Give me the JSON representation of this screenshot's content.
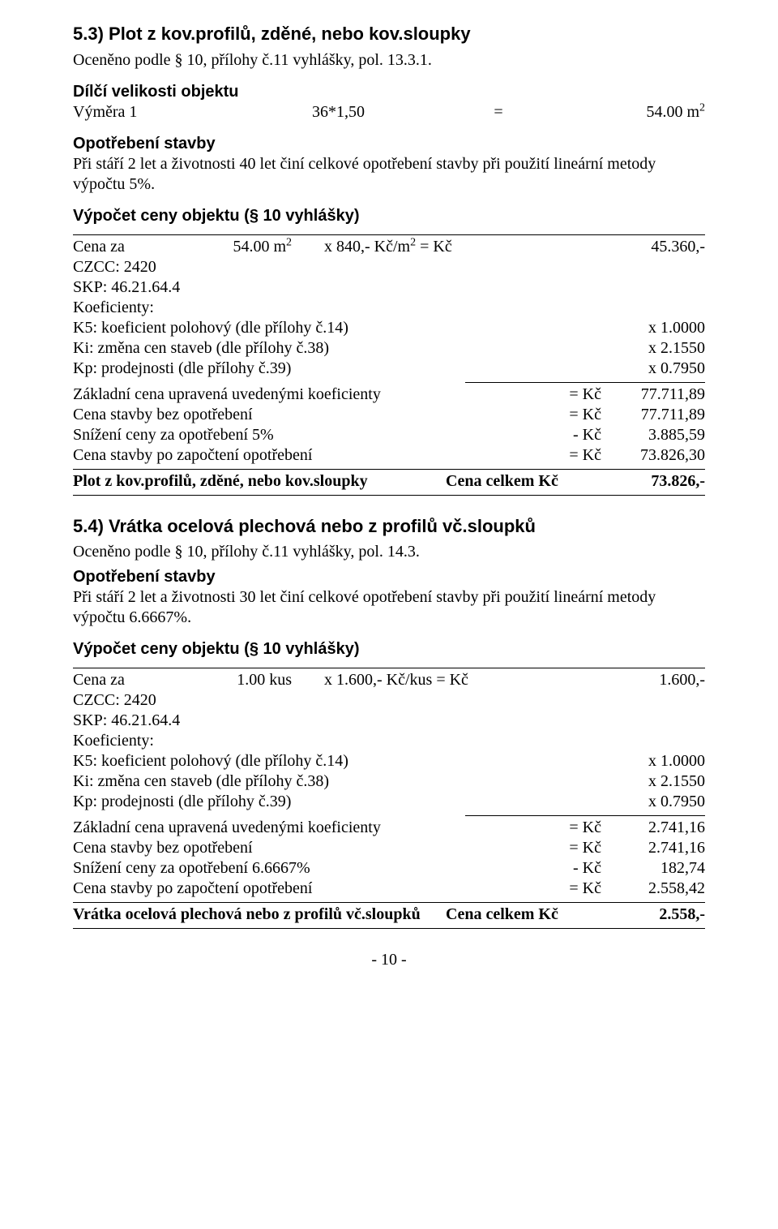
{
  "section53": {
    "heading": "5.3) Plot z kov.profilů, zděné, nebo kov.sloupky",
    "ocen": "Oceněno podle § 10, přílohy č.11 vyhlášky, pol. 13.3.1.",
    "dilci_h": "Dílčí velikosti objektu",
    "vymera_label": "Výměra 1",
    "vymera_calc": "36*1,50",
    "vymera_eq": "=",
    "vymera_val": "54.00 m",
    "opotreb_h": "Opotřebení stavby",
    "opotreb_txt": "Při stáří 2 let a životnosti 40 let činí celkové opotřebení stavby při použití lineární metody výpočtu 5%.",
    "vypocet_h": "Výpočet ceny objektu (§ 10 vyhlášky)",
    "cena_za_label": "Cena za",
    "cena_za_amount": "54.00 m",
    "cena_za_rate": "x 840,- Kč/m",
    "cena_za_eq": "= Kč",
    "cena_za_val": "45.360,-",
    "czcc": "CZCC: 2420",
    "skp": "SKP: 46.21.64.4",
    "koef_h": "Koeficienty:",
    "k5_label": "K5: koeficient polohový (dle přílohy č.14)",
    "k5_val": "x 1.0000",
    "ki_label": "Ki: změna cen staveb (dle přílohy č.38)",
    "ki_val": "x 2.1550",
    "kp_label": "Kp: prodejnosti (dle přílohy č.39)",
    "kp_val": "x 0.7950",
    "zc_label": "Základní cena upravená uvedenými koeficienty",
    "zc_op": "= Kč",
    "zc_val": "77.711,89",
    "cb_label": "Cena stavby bez opotřebení",
    "cb_op": "= Kč",
    "cb_val": "77.711,89",
    "sn_label": "Snížení ceny za opotřebení 5%",
    "sn_op": "- Kč",
    "sn_val": "3.885,59",
    "cp_label": "Cena stavby po započtení opotřebení",
    "cp_op": "= Kč",
    "cp_val": "73.826,30",
    "total_label": "Plot z kov.profilů, zděné, nebo kov.sloupky",
    "total_mid": "Cena celkem Kč",
    "total_val": "73.826,-"
  },
  "section54": {
    "heading": "5.4) Vrátka ocelová plechová nebo z profilů vč.sloupků",
    "ocen": "Oceněno podle § 10, přílohy č.11 vyhlášky, pol. 14.3.",
    "opotreb_h": "Opotřebení stavby",
    "opotreb_txt": "Při stáří 2 let a životnosti 30 let činí celkové opotřebení stavby při použití lineární metody výpočtu 6.6667%.",
    "vypocet_h": "Výpočet ceny objektu (§ 10 vyhlášky)",
    "cena_za_label": "Cena za",
    "cena_za_amount": "1.00 kus",
    "cena_za_rate": "x 1.600,- Kč/kus = Kč",
    "cena_za_val": "1.600,-",
    "czcc": "CZCC: 2420",
    "skp": "SKP: 46.21.64.4",
    "koef_h": "Koeficienty:",
    "k5_label": "K5: koeficient polohový (dle přílohy č.14)",
    "k5_val": "x 1.0000",
    "ki_label": "Ki: změna cen staveb (dle přílohy č.38)",
    "ki_val": "x 2.1550",
    "kp_label": "Kp: prodejnosti (dle přílohy č.39)",
    "kp_val": "x 0.7950",
    "zc_label": "Základní cena upravená uvedenými koeficienty",
    "zc_op": "= Kč",
    "zc_val": "2.741,16",
    "cb_label": "Cena stavby bez opotřebení",
    "cb_op": "= Kč",
    "cb_val": "2.741,16",
    "sn_label": "Snížení ceny za opotřebení 6.6667%",
    "sn_op": "- Kč",
    "sn_val": "182,74",
    "cp_label": "Cena stavby po započtení opotřebení",
    "cp_op": "= Kč",
    "cp_val": "2.558,42",
    "total_label": "Vrátka ocelová plechová nebo z profilů vč.sloupků",
    "total_mid": "Cena celkem Kč",
    "total_val": "2.558,-"
  },
  "footer": "- 10 -"
}
